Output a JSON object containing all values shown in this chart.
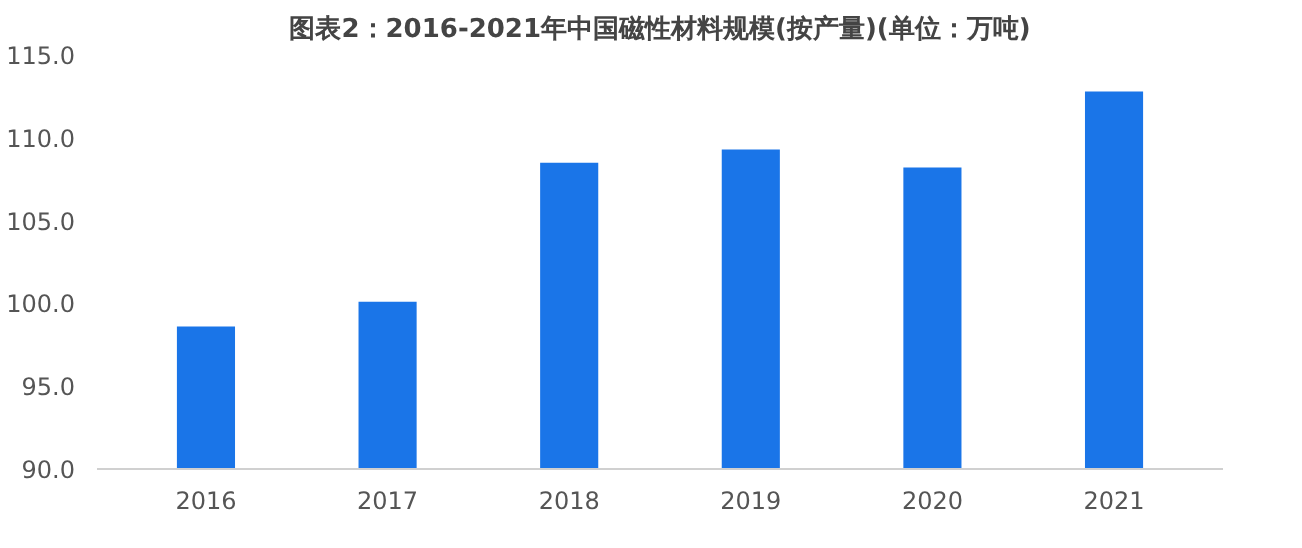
{
  "chart_data": {
    "type": "bar",
    "title": "图表2：2016-2021年中国磁性材料规模(按产量)(单位：万吨)",
    "categories": [
      "2016",
      "2017",
      "2018",
      "2019",
      "2020",
      "2021"
    ],
    "values": [
      98.6,
      100.1,
      108.5,
      109.3,
      108.2,
      112.8
    ],
    "color": "#1a75e8",
    "ylim": [
      90,
      115
    ],
    "yticks": [
      {
        "value": 90,
        "label": "90.0"
      },
      {
        "value": 95,
        "label": "95.0"
      },
      {
        "value": 100,
        "label": "100.0"
      },
      {
        "value": 105,
        "label": "105.0"
      },
      {
        "value": 110,
        "label": "110.0"
      },
      {
        "value": 115,
        "label": "115.0"
      }
    ],
    "grid": false
  }
}
